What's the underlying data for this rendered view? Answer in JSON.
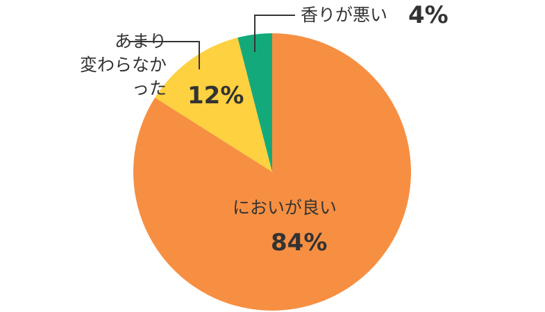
{
  "chart_data": {
    "type": "pie",
    "categories": [
      "においが良い",
      "あまり\n変わらなかった",
      "香りが悪い"
    ],
    "values": [
      84,
      12,
      4
    ],
    "value_labels": [
      "84%",
      "12%",
      "4%"
    ],
    "colors": [
      "#f78f42",
      "#fdd13f",
      "#14a97b"
    ]
  }
}
